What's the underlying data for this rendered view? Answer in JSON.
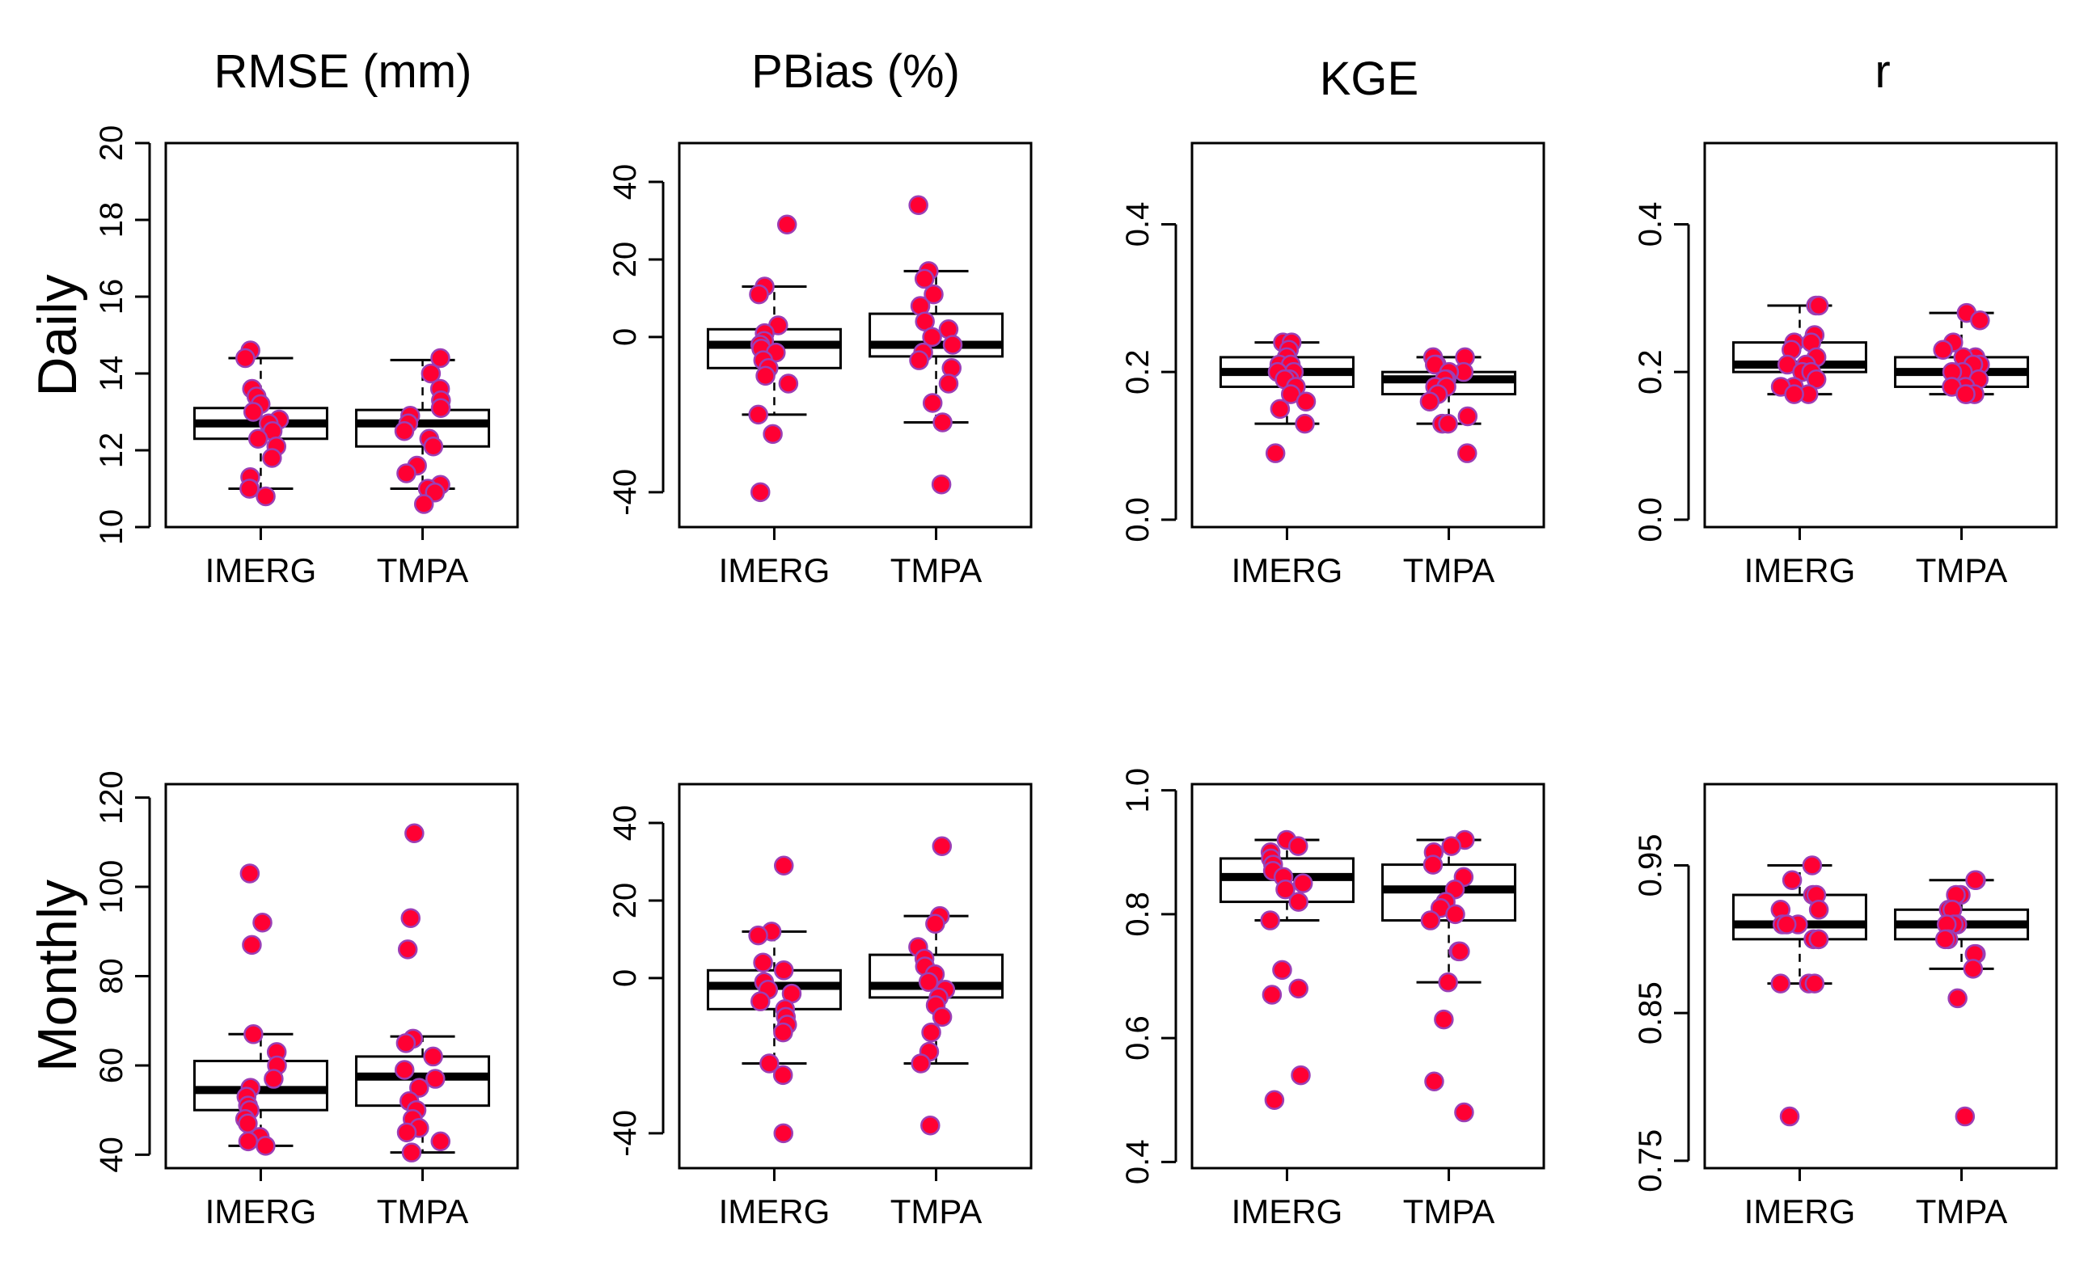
{
  "figure": {
    "col_titles": [
      "RMSE (mm)",
      "PBias (%)",
      "KGE",
      "r"
    ],
    "row_labels": [
      "Daily",
      "Monthly"
    ]
  },
  "colors": {
    "point_fill": "#ff0033",
    "point_edge": "#9b3fb6",
    "box_line": "#000000"
  },
  "chart_data": [
    {
      "type": "boxplot",
      "row": "Daily",
      "title": "RMSE (mm)",
      "categories": [
        "IMERG",
        "TMPA"
      ],
      "ylim": [
        10,
        20
      ],
      "yticks": [
        10,
        12,
        14,
        16,
        18,
        20
      ],
      "yticklabels": [
        "10",
        "12",
        "14",
        "16",
        "18",
        "20"
      ],
      "boxes": [
        {
          "name": "IMERG",
          "whisker_low": 11.0,
          "q1": 12.3,
          "median": 12.7,
          "q3": 13.1,
          "whisker_high": 14.4
        },
        {
          "name": "TMPA",
          "whisker_low": 11.0,
          "q1": 12.1,
          "median": 12.7,
          "q3": 13.05,
          "whisker_high": 14.35
        }
      ],
      "points": [
        [
          14.6,
          14.4,
          13.6,
          13.4,
          13.2,
          13.0,
          12.8,
          12.7,
          12.5,
          12.3,
          12.1,
          11.8,
          11.3,
          11.0,
          11.0,
          10.8
        ],
        [
          14.4,
          14.0,
          13.6,
          13.3,
          13.1,
          12.9,
          12.7,
          12.5,
          12.3,
          12.1,
          11.6,
          11.4,
          11.1,
          11.0,
          10.9,
          10.6
        ]
      ]
    },
    {
      "type": "boxplot",
      "row": "Daily",
      "title": "PBias (%)",
      "categories": [
        "IMERG",
        "TMPA"
      ],
      "ylim": [
        -49,
        50
      ],
      "yticks": [
        -40,
        0,
        20,
        40
      ],
      "yticklabels": [
        "-40",
        "0",
        "20",
        "40"
      ],
      "boxes": [
        {
          "name": "IMERG",
          "whisker_low": -20,
          "q1": -8,
          "median": -2,
          "q3": 2,
          "whisker_high": 13
        },
        {
          "name": "TMPA",
          "whisker_low": -22,
          "q1": -5,
          "median": -2,
          "q3": 6,
          "whisker_high": 17
        }
      ],
      "points": [
        [
          29,
          13,
          11,
          3,
          1,
          -1,
          -2,
          -3,
          -4,
          -6,
          -8,
          -10,
          -12,
          -20,
          -25,
          -40
        ],
        [
          34,
          17,
          15,
          11,
          8,
          4,
          2,
          0,
          -2,
          -4,
          -6,
          -8,
          -12,
          -17,
          -22,
          -38
        ]
      ]
    },
    {
      "type": "boxplot",
      "row": "Daily",
      "title": "KGE",
      "categories": [
        "IMERG",
        "TMPA"
      ],
      "ylim": [
        -0.01,
        0.51
      ],
      "yticks": [
        0.0,
        0.2,
        0.4
      ],
      "yticklabels": [
        "0.0",
        "0.2",
        "0.4"
      ],
      "boxes": [
        {
          "name": "IMERG",
          "whisker_low": 0.13,
          "q1": 0.18,
          "median": 0.2,
          "q3": 0.22,
          "whisker_high": 0.24
        },
        {
          "name": "TMPA",
          "whisker_low": 0.13,
          "q1": 0.17,
          "median": 0.19,
          "q3": 0.2,
          "whisker_high": 0.22
        }
      ],
      "points": [
        [
          0.24,
          0.24,
          0.23,
          0.22,
          0.21,
          0.21,
          0.2,
          0.2,
          0.19,
          0.19,
          0.18,
          0.17,
          0.16,
          0.15,
          0.13,
          0.09
        ],
        [
          0.22,
          0.22,
          0.21,
          0.21,
          0.2,
          0.2,
          0.19,
          0.19,
          0.18,
          0.18,
          0.17,
          0.16,
          0.14,
          0.13,
          0.13,
          0.09
        ]
      ]
    },
    {
      "type": "boxplot",
      "row": "Daily",
      "title": "r",
      "categories": [
        "IMERG",
        "TMPA"
      ],
      "ylim": [
        -0.01,
        0.51
      ],
      "yticks": [
        0.0,
        0.2,
        0.4
      ],
      "yticklabels": [
        "0.0",
        "0.2",
        "0.4"
      ],
      "boxes": [
        {
          "name": "IMERG",
          "whisker_low": 0.17,
          "q1": 0.2,
          "median": 0.21,
          "q3": 0.24,
          "whisker_high": 0.29
        },
        {
          "name": "TMPA",
          "whisker_low": 0.17,
          "q1": 0.18,
          "median": 0.2,
          "q3": 0.22,
          "whisker_high": 0.28
        }
      ],
      "points": [
        [
          0.29,
          0.29,
          0.25,
          0.24,
          0.24,
          0.23,
          0.22,
          0.21,
          0.21,
          0.2,
          0.2,
          0.19,
          0.18,
          0.18,
          0.17,
          0.17
        ],
        [
          0.28,
          0.27,
          0.24,
          0.23,
          0.22,
          0.22,
          0.21,
          0.21,
          0.2,
          0.2,
          0.19,
          0.18,
          0.18,
          0.17,
          0.17,
          0.17
        ]
      ]
    },
    {
      "type": "boxplot",
      "row": "Monthly",
      "title": "RMSE (mm)",
      "categories": [
        "IMERG",
        "TMPA"
      ],
      "ylim": [
        37,
        123
      ],
      "yticks": [
        40,
        60,
        80,
        100,
        120
      ],
      "yticklabels": [
        "40",
        "60",
        "80",
        "100",
        "120"
      ],
      "boxes": [
        {
          "name": "IMERG",
          "whisker_low": 42,
          "q1": 50,
          "median": 54.5,
          "q3": 61,
          "whisker_high": 67
        },
        {
          "name": "TMPA",
          "whisker_low": 40.5,
          "q1": 51,
          "median": 57.5,
          "q3": 62,
          "whisker_high": 66.5
        }
      ],
      "points": [
        [
          103,
          92,
          87,
          67,
          63,
          60,
          57,
          55,
          53,
          51,
          50,
          48,
          47,
          44,
          43,
          42
        ],
        [
          112,
          93,
          86,
          66,
          65,
          62,
          59,
          57,
          55,
          52,
          50,
          48,
          46,
          45,
          43,
          40.5
        ]
      ]
    },
    {
      "type": "boxplot",
      "row": "Monthly",
      "title": "PBias (%)",
      "categories": [
        "IMERG",
        "TMPA"
      ],
      "ylim": [
        -49,
        50
      ],
      "yticks": [
        -40,
        0,
        20,
        40
      ],
      "yticklabels": [
        "-40",
        "0",
        "20",
        "40"
      ],
      "boxes": [
        {
          "name": "IMERG",
          "whisker_low": -22,
          "q1": -8,
          "median": -2,
          "q3": 2,
          "whisker_high": 12
        },
        {
          "name": "TMPA",
          "whisker_low": -22,
          "q1": -5,
          "median": -2,
          "q3": 6,
          "whisker_high": 16
        }
      ],
      "points": [
        [
          29,
          12,
          11,
          4,
          2,
          -1,
          -3,
          -4,
          -6,
          -8,
          -10,
          -12,
          -14,
          -22,
          -25,
          -40
        ],
        [
          34,
          16,
          14,
          8,
          5,
          3,
          1,
          -1,
          -3,
          -5,
          -7,
          -10,
          -14,
          -19,
          -22,
          -38
        ]
      ]
    },
    {
      "type": "boxplot",
      "row": "Monthly",
      "title": "KGE",
      "categories": [
        "IMERG",
        "TMPA"
      ],
      "ylim": [
        0.39,
        1.01
      ],
      "yticks": [
        0.4,
        0.6,
        0.8,
        1.0
      ],
      "yticklabels": [
        "0.4",
        "0.6",
        "0.8",
        "1.0"
      ],
      "boxes": [
        {
          "name": "IMERG",
          "whisker_low": 0.79,
          "q1": 0.82,
          "median": 0.86,
          "q3": 0.89,
          "whisker_high": 0.92
        },
        {
          "name": "TMPA",
          "whisker_low": 0.69,
          "q1": 0.79,
          "median": 0.84,
          "q3": 0.88,
          "whisker_high": 0.92
        }
      ],
      "points": [
        [
          0.92,
          0.91,
          0.9,
          0.89,
          0.88,
          0.87,
          0.86,
          0.85,
          0.84,
          0.82,
          0.79,
          0.71,
          0.68,
          0.67,
          0.54,
          0.5
        ],
        [
          0.92,
          0.91,
          0.9,
          0.88,
          0.86,
          0.84,
          0.82,
          0.81,
          0.8,
          0.79,
          0.74,
          0.74,
          0.69,
          0.63,
          0.53,
          0.48
        ]
      ]
    },
    {
      "type": "boxplot",
      "row": "Monthly",
      "title": "r",
      "categories": [
        "IMERG",
        "TMPA"
      ],
      "ylim": [
        0.745,
        1.005
      ],
      "yticks": [
        0.75,
        0.85,
        0.95
      ],
      "yticklabels": [
        "0.75",
        "0.85",
        "0.95"
      ],
      "boxes": [
        {
          "name": "IMERG",
          "whisker_low": 0.87,
          "q1": 0.9,
          "median": 0.91,
          "q3": 0.93,
          "whisker_high": 0.95
        },
        {
          "name": "TMPA",
          "whisker_low": 0.88,
          "q1": 0.9,
          "median": 0.91,
          "q3": 0.92,
          "whisker_high": 0.94
        }
      ],
      "points": [
        [
          0.95,
          0.94,
          0.93,
          0.93,
          0.92,
          0.92,
          0.91,
          0.91,
          0.91,
          0.9,
          0.9,
          0.9,
          0.87,
          0.87,
          0.87,
          0.78
        ],
        [
          0.94,
          0.94,
          0.93,
          0.93,
          0.92,
          0.92,
          0.91,
          0.91,
          0.91,
          0.9,
          0.9,
          0.89,
          0.89,
          0.88,
          0.86,
          0.78
        ]
      ]
    }
  ]
}
